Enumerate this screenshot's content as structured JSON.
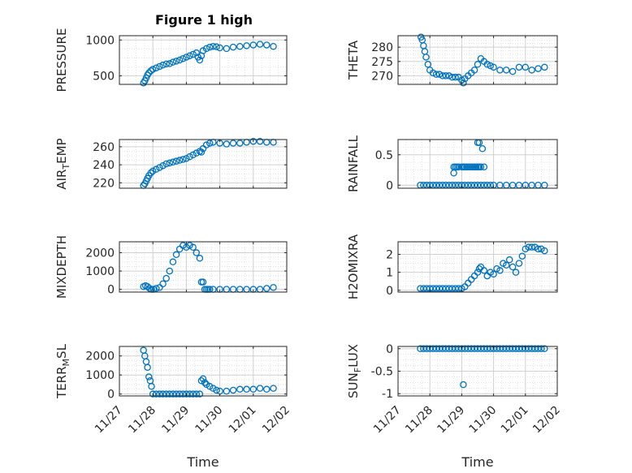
{
  "figure": {
    "title": "Figure 1 high"
  },
  "colors": {
    "marker": "#0072BD",
    "axis": "#262626",
    "grid": "#b0b0b0"
  },
  "chart_data": [
    {
      "id": "pressure",
      "type": "scatter",
      "title": "Figure 1 high",
      "ylabel": "PRESSURE",
      "ylabel_sub": "",
      "ylim": [
        380,
        1060
      ],
      "yticks": [
        500,
        1000
      ],
      "ytick_labels": [
        "500",
        "1000"
      ],
      "grid": true,
      "x": [
        27.72,
        27.76,
        27.8,
        27.84,
        27.88,
        27.94,
        28.0,
        28.1,
        28.2,
        28.3,
        28.4,
        28.5,
        28.6,
        28.7,
        28.8,
        28.9,
        29.0,
        29.1,
        29.2,
        29.3,
        29.35,
        29.4,
        29.45,
        29.5,
        29.6,
        29.7,
        29.8,
        29.9,
        30.0,
        30.2,
        30.4,
        30.6,
        30.8,
        31.0,
        31.2,
        31.4,
        31.6
      ],
      "y": [
        400,
        430,
        470,
        510,
        540,
        570,
        590,
        610,
        630,
        650,
        665,
        670,
        690,
        705,
        720,
        740,
        760,
        780,
        800,
        820,
        760,
        720,
        780,
        850,
        880,
        900,
        910,
        905,
        890,
        880,
        900,
        910,
        920,
        930,
        940,
        930,
        910
      ]
    },
    {
      "id": "theta",
      "type": "scatter",
      "ylabel": "THETA",
      "ylabel_sub": "",
      "ylim": [
        267,
        284
      ],
      "yticks": [
        270,
        275,
        280
      ],
      "ytick_labels": [
        "270",
        "275",
        "280"
      ],
      "grid": true,
      "x": [
        27.72,
        27.76,
        27.8,
        27.84,
        27.88,
        27.94,
        28.0,
        28.1,
        28.2,
        28.3,
        28.4,
        28.5,
        28.6,
        28.7,
        28.8,
        28.9,
        29.0,
        29.05,
        29.1,
        29.2,
        29.3,
        29.4,
        29.5,
        29.6,
        29.7,
        29.8,
        29.9,
        30.0,
        30.2,
        30.4,
        30.6,
        30.8,
        31.0,
        31.2,
        31.4,
        31.6
      ],
      "y": [
        283.5,
        282.5,
        280.5,
        278.5,
        276.5,
        274,
        272,
        271,
        270.5,
        270.5,
        270,
        270,
        270,
        269.5,
        269.5,
        269.5,
        268.5,
        267.5,
        269,
        270,
        271,
        272,
        274,
        276,
        275,
        274,
        273.5,
        273,
        272,
        272,
        271.5,
        273,
        273,
        272,
        272.5,
        273
      ]
    },
    {
      "id": "air_temp",
      "type": "scatter",
      "ylabel": "AIR",
      "ylabel_sub": "T",
      "ylabel_suffix": "EMP",
      "ylim": [
        214,
        268
      ],
      "yticks": [
        220,
        240,
        260
      ],
      "ytick_labels": [
        "220",
        "240",
        "260"
      ],
      "grid": true,
      "x": [
        27.72,
        27.76,
        27.8,
        27.84,
        27.88,
        27.94,
        28.0,
        28.1,
        28.2,
        28.3,
        28.4,
        28.5,
        28.6,
        28.7,
        28.8,
        28.9,
        29.0,
        29.1,
        29.2,
        29.3,
        29.4,
        29.45,
        29.5,
        29.6,
        29.7,
        29.8,
        30.0,
        30.2,
        30.4,
        30.6,
        30.8,
        31.0,
        31.2,
        31.4,
        31.6
      ],
      "y": [
        217,
        219,
        222,
        225,
        228,
        231,
        233,
        235,
        237,
        239,
        241,
        242,
        243,
        244,
        245,
        246,
        247,
        249,
        251,
        253,
        255,
        254,
        258,
        262,
        264,
        265,
        264,
        263,
        264,
        264,
        265,
        266,
        266,
        265,
        265
      ]
    },
    {
      "id": "rainfall",
      "type": "scatter",
      "ylabel": "RAINFALL",
      "ylabel_sub": "",
      "ylim": [
        -0.05,
        0.75
      ],
      "yticks": [
        0,
        0.5
      ],
      "ytick_labels": [
        "0",
        "0.5"
      ],
      "grid": true,
      "x": [
        27.7,
        27.8,
        27.9,
        28.0,
        28.1,
        28.2,
        28.3,
        28.4,
        28.5,
        28.6,
        28.7,
        28.8,
        28.9,
        29.0,
        29.1,
        29.2,
        29.3,
        29.4,
        29.5,
        29.6,
        29.7,
        29.8,
        29.9,
        30.0,
        30.2,
        30.4,
        30.6,
        30.8,
        31.0,
        31.2,
        31.4,
        31.6,
        28.75,
        28.8,
        28.85,
        28.9,
        29.0,
        29.05,
        29.1,
        29.15,
        29.2,
        29.25,
        29.3,
        29.35,
        29.4,
        29.45,
        29.5,
        29.55,
        29.6,
        29.7,
        28.75,
        29.5,
        29.55,
        29.65
      ],
      "y": [
        0,
        0,
        0,
        0,
        0,
        0,
        0,
        0,
        0,
        0,
        0,
        0,
        0,
        0,
        0,
        0,
        0,
        0,
        0,
        0,
        0,
        0,
        0,
        0,
        0,
        0,
        0,
        0,
        0,
        0,
        0,
        0,
        0.3,
        0.3,
        0.3,
        0.3,
        0.3,
        0.3,
        0.3,
        0.3,
        0.3,
        0.3,
        0.3,
        0.3,
        0.3,
        0.3,
        0.3,
        0.3,
        0.3,
        0.3,
        0.2,
        0.7,
        0.7,
        0.6
      ]
    },
    {
      "id": "mixdepth",
      "type": "scatter",
      "ylabel": "MIXDEPTH",
      "ylabel_sub": "",
      "ylim": [
        -150,
        2600
      ],
      "yticks": [
        0,
        1000,
        2000
      ],
      "ytick_labels": [
        "0",
        "1000",
        "2000"
      ],
      "grid": true,
      "x": [
        27.72,
        27.78,
        27.84,
        27.9,
        27.96,
        28.02,
        28.1,
        28.2,
        28.3,
        28.4,
        28.5,
        28.6,
        28.7,
        28.8,
        28.9,
        29.0,
        29.1,
        29.2,
        29.3,
        29.4,
        29.45,
        29.5,
        29.55,
        29.6,
        29.65,
        29.7,
        29.8,
        30.0,
        30.2,
        30.4,
        30.6,
        30.8,
        31.0,
        31.2,
        31.4,
        31.6
      ],
      "y": [
        150,
        200,
        150,
        50,
        0,
        0,
        50,
        100,
        300,
        600,
        1000,
        1500,
        1900,
        2200,
        2400,
        2300,
        2400,
        2300,
        2000,
        1700,
        400,
        400,
        0,
        0,
        0,
        0,
        0,
        0,
        0,
        0,
        0,
        0,
        0,
        0,
        50,
        100
      ]
    },
    {
      "id": "h2omixra",
      "type": "scatter",
      "ylabel": "H2OMIXRA",
      "ylabel_sub": "",
      "ylim": [
        -0.1,
        2.7
      ],
      "yticks": [
        0,
        1,
        2
      ],
      "ytick_labels": [
        "0",
        "1",
        "2"
      ],
      "grid": true,
      "x": [
        27.7,
        27.8,
        27.9,
        28.0,
        28.1,
        28.2,
        28.3,
        28.4,
        28.5,
        28.6,
        28.7,
        28.8,
        28.9,
        29.0,
        29.1,
        29.2,
        29.3,
        29.4,
        29.5,
        29.55,
        29.6,
        29.7,
        29.8,
        29.9,
        30.0,
        30.1,
        30.2,
        30.3,
        30.4,
        30.5,
        30.6,
        30.7,
        30.8,
        30.9,
        31.0,
        31.1,
        31.2,
        31.3,
        31.4,
        31.5,
        31.6
      ],
      "y": [
        0.1,
        0.1,
        0.1,
        0.1,
        0.1,
        0.1,
        0.1,
        0.1,
        0.1,
        0.1,
        0.1,
        0.1,
        0.1,
        0.1,
        0.2,
        0.4,
        0.6,
        0.8,
        1.0,
        1.2,
        1.3,
        1.1,
        0.8,
        1.0,
        0.9,
        1.2,
        1.1,
        1.5,
        1.4,
        1.7,
        1.3,
        1.0,
        1.5,
        1.9,
        2.3,
        2.4,
        2.4,
        2.4,
        2.3,
        2.3,
        2.2
      ]
    },
    {
      "id": "terr_msl",
      "type": "scatter",
      "ylabel": "TERR",
      "ylabel_sub": "M",
      "ylabel_suffix": "SL",
      "ylim": [
        -100,
        2500
      ],
      "yticks": [
        0,
        1000,
        2000
      ],
      "ytick_labels": [
        "0",
        "1000",
        "2000"
      ],
      "grid": true,
      "xticks": [
        27,
        28,
        29,
        30,
        31,
        32
      ],
      "xtick_labels": [
        "11/27",
        "11/28",
        "11/29",
        "11/30",
        "12/01",
        "12/02"
      ],
      "xlabel": "Time",
      "x": [
        27.72,
        27.76,
        27.8,
        27.84,
        27.88,
        27.92,
        27.96,
        28.0,
        28.1,
        28.2,
        28.3,
        28.4,
        28.5,
        28.6,
        28.7,
        28.8,
        28.9,
        29.0,
        29.1,
        29.2,
        29.3,
        29.4,
        29.45,
        29.5,
        29.55,
        29.6,
        29.7,
        29.8,
        29.9,
        30.0,
        30.2,
        30.4,
        30.6,
        30.8,
        31.0,
        31.2,
        31.4,
        31.6
      ],
      "y": [
        2300,
        2000,
        1700,
        1400,
        900,
        700,
        400,
        0,
        0,
        0,
        0,
        0,
        0,
        0,
        0,
        0,
        0,
        0,
        0,
        0,
        0,
        0,
        700,
        800,
        600,
        500,
        400,
        300,
        200,
        150,
        150,
        200,
        250,
        250,
        250,
        300,
        250,
        300
      ]
    },
    {
      "id": "sun_flux",
      "type": "scatter",
      "ylabel": "SUN",
      "ylabel_sub": "F",
      "ylabel_suffix": "LUX",
      "ylim": [
        -1.05,
        0.05
      ],
      "yticks": [
        -1,
        -0.5,
        0
      ],
      "ytick_labels": [
        "-1",
        "-0.5",
        "0"
      ],
      "grid": true,
      "xticks": [
        27,
        28,
        29,
        30,
        31,
        32
      ],
      "xtick_labels": [
        "11/27",
        "11/28",
        "11/29",
        "11/30",
        "12/01",
        "12/02"
      ],
      "xlabel": "Time",
      "x": [
        27.7,
        27.8,
        27.9,
        28.0,
        28.1,
        28.2,
        28.3,
        28.4,
        28.5,
        28.6,
        28.7,
        28.8,
        28.9,
        29.0,
        29.1,
        29.2,
        29.3,
        29.4,
        29.5,
        29.6,
        29.7,
        29.8,
        29.9,
        30.0,
        30.1,
        30.2,
        30.3,
        30.4,
        30.5,
        30.6,
        30.7,
        30.8,
        30.9,
        31.0,
        31.1,
        31.2,
        31.3,
        31.4,
        31.5,
        31.6,
        29.05
      ],
      "y": [
        0,
        0,
        0,
        0,
        0,
        0,
        0,
        0,
        0,
        0,
        0,
        0,
        0,
        0,
        0,
        0,
        0,
        0,
        0,
        0,
        0,
        0,
        0,
        0,
        0,
        0,
        0,
        0,
        0,
        0,
        0,
        0,
        0,
        0,
        0,
        0,
        0,
        0,
        0,
        0,
        -0.8
      ]
    }
  ]
}
